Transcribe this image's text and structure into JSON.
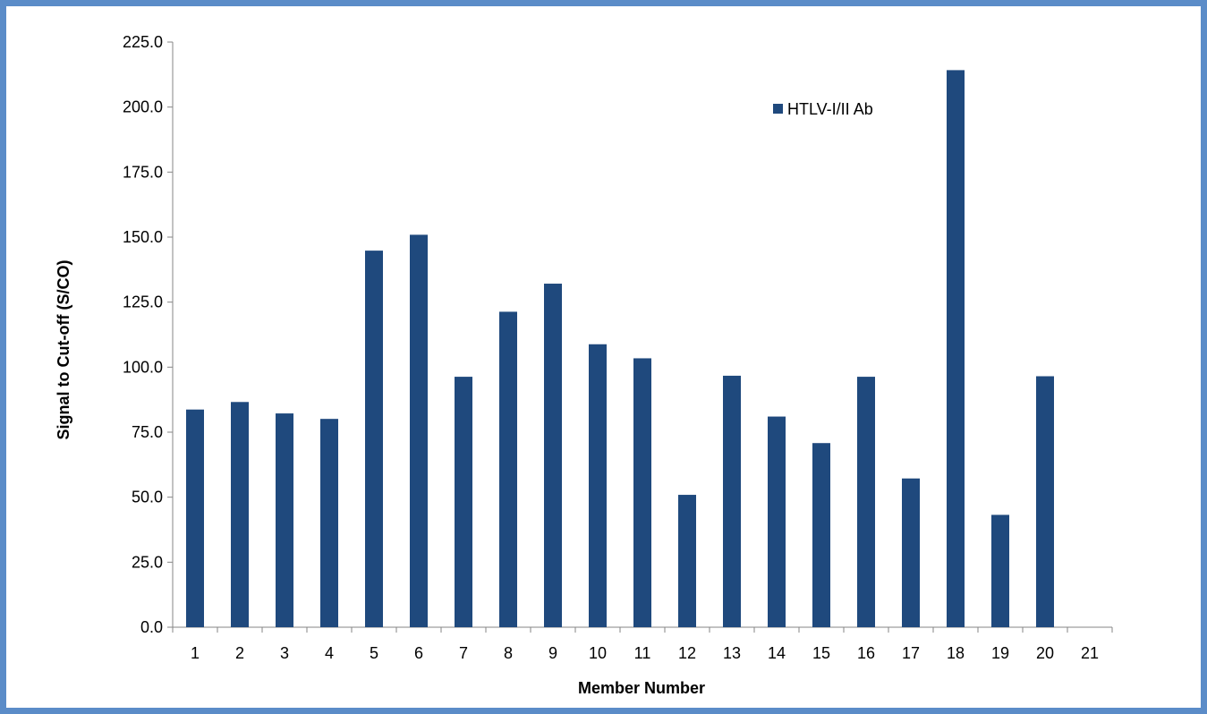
{
  "chart_data": {
    "type": "bar",
    "xlabel": "Member Number",
    "ylabel": "Signal to Cut-off (S/CO)",
    "ylim": [
      0,
      225
    ],
    "ytick_step": 25,
    "ytick_labels": [
      "0.0",
      "25.0",
      "50.0",
      "75.0",
      "100.0",
      "125.0",
      "150.0",
      "175.0",
      "200.0",
      "225.0"
    ],
    "categories": [
      "1",
      "2",
      "3",
      "4",
      "5",
      "6",
      "7",
      "8",
      "9",
      "10",
      "11",
      "12",
      "13",
      "14",
      "15",
      "16",
      "17",
      "18",
      "19",
      "20",
      "21"
    ],
    "series": [
      {
        "name": "HTLV-I/II Ab",
        "color": "#1f497d",
        "values": [
          83.7,
          86.6,
          82.2,
          80.1,
          144.8,
          150.9,
          96.3,
          121.3,
          132.1,
          108.8,
          103.4,
          50.9,
          96.7,
          81.0,
          70.8,
          96.3,
          57.2,
          214.2,
          43.2,
          96.5,
          null
        ]
      }
    ],
    "legend_position": "top-right",
    "grid": false,
    "frame_color": "#5b8cc8"
  }
}
